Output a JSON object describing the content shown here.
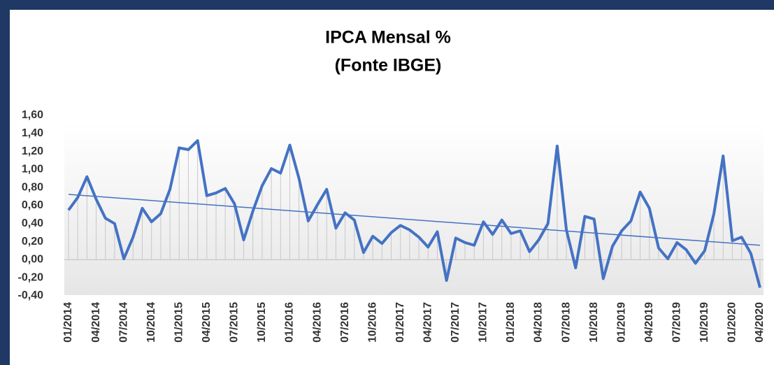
{
  "chart_data": {
    "type": "line",
    "title": "IPCA Mensal %",
    "subtitle": "(Fonte IBGE)",
    "categories": [
      "01/2014",
      null,
      null,
      "04/2014",
      null,
      null,
      "07/2014",
      null,
      null,
      "10/2014",
      null,
      null,
      "01/2015",
      null,
      null,
      "04/2015",
      null,
      null,
      "07/2015",
      null,
      null,
      "10/2015",
      null,
      null,
      "01/2016",
      null,
      null,
      "04/2016",
      null,
      null,
      "07/2016",
      null,
      null,
      "10/2016",
      null,
      null,
      "01/2017",
      null,
      null,
      "04/2017",
      null,
      null,
      "07/2017",
      null,
      null,
      "10/2017",
      null,
      null,
      "01/2018",
      null,
      null,
      "04/2018",
      null,
      null,
      "07/2018",
      null,
      null,
      "10/2018",
      null,
      null,
      "01/2019",
      null,
      null,
      "04/2019",
      null,
      null,
      "07/2019",
      null,
      null,
      "10/2019",
      null,
      null,
      "01/2020",
      null,
      null,
      "04/2020"
    ],
    "values": [
      0.55,
      0.69,
      0.92,
      0.67,
      0.46,
      0.4,
      0.01,
      0.25,
      0.57,
      0.42,
      0.51,
      0.78,
      1.24,
      1.22,
      1.32,
      0.71,
      0.74,
      0.79,
      0.62,
      0.22,
      0.54,
      0.82,
      1.01,
      0.96,
      1.27,
      0.9,
      0.43,
      0.61,
      0.78,
      0.35,
      0.52,
      0.44,
      0.08,
      0.26,
      0.18,
      0.3,
      0.38,
      0.33,
      0.25,
      0.14,
      0.31,
      -0.23,
      0.24,
      0.19,
      0.16,
      0.42,
      0.28,
      0.44,
      0.29,
      0.32,
      0.09,
      0.22,
      0.4,
      1.26,
      0.33,
      -0.09,
      0.48,
      0.45,
      -0.21,
      0.15,
      0.32,
      0.43,
      0.75,
      0.57,
      0.13,
      0.01,
      0.19,
      0.11,
      -0.04,
      0.1,
      0.51,
      1.15,
      0.21,
      0.25,
      0.07,
      -0.31
    ],
    "color": "#4472c4",
    "trendline": true,
    "drop_lines": true,
    "negative_label_color": "#e00000",
    "ylim": [
      -0.4,
      1.6
    ],
    "yticks": [
      {
        "value": -0.4,
        "label": "-0,40"
      },
      {
        "value": -0.2,
        "label": "-0,20"
      },
      {
        "value": 0,
        "label": "0,00"
      },
      {
        "value": 0.2,
        "label": "0,20"
      },
      {
        "value": 0.4,
        "label": "0,40"
      },
      {
        "value": 0.6,
        "label": "0,60"
      },
      {
        "value": 0.8,
        "label": "0,80"
      },
      {
        "value": 1.0,
        "label": "1,00"
      },
      {
        "value": 1.2,
        "label": "1,20"
      },
      {
        "value": 1.4,
        "label": "1,40"
      },
      {
        "value": 1.6,
        "label": "1,60"
      }
    ]
  }
}
